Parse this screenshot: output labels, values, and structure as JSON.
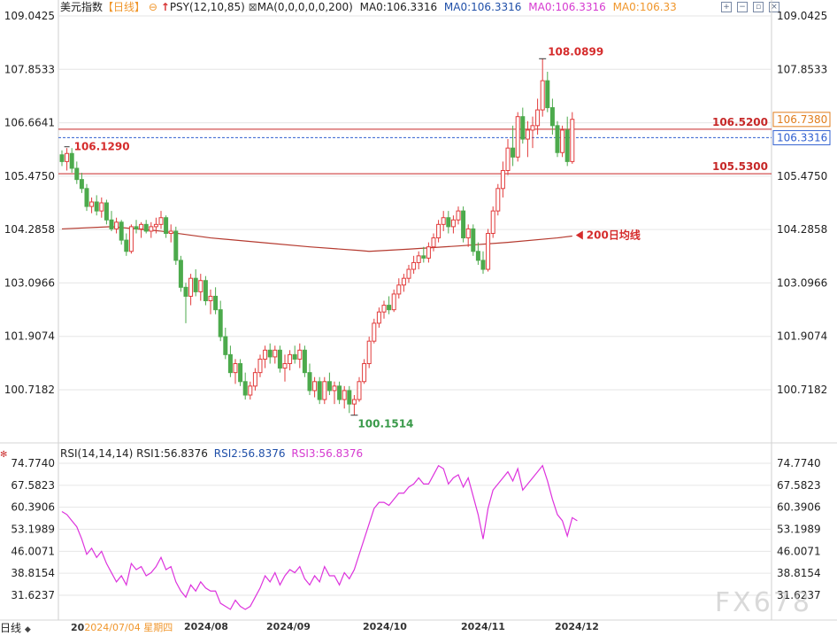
{
  "header": {
    "instrument": "美元指数",
    "period": "【日线】",
    "settle_icon": "⊖",
    "psy_label": "PSY(12,10,85)",
    "ma_params": "MA(0,0,0,0,0,200)",
    "ma_values": [
      "MA0:106.3316",
      "MA0:106.3316",
      "MA0:106.3316",
      "MA0:106.33"
    ],
    "ma_colors": [
      "#222222",
      "#1f4fa8",
      "#d63ad0",
      "#f0962b"
    ],
    "toolbar_icons": [
      "expand-icon",
      "minimize-icon",
      "restore-icon",
      "close-icon"
    ]
  },
  "rsi_header": {
    "params": "RSI(14,14,14)",
    "rsi1": "RSI1:56.8376",
    "rsi2": "RSI2:56.8376",
    "rsi3": "RSI3:56.8376"
  },
  "footer": {
    "period_tab": "日线",
    "hover_date": "2024/07/04 星期四",
    "hover_prefix": "20"
  },
  "watermark": "FX678",
  "colors": {
    "up": "#e23b3b",
    "down": "#4caa4c",
    "ma200": "#b53a2f",
    "level": "#c62828",
    "current": "#2f5fd0",
    "rsi": "#dd33dd",
    "annotation_red": "#d52c2c",
    "annotation_green": "#3a9a4a",
    "level_label_orange": "#e07d1c",
    "grid": "#e6e6e6"
  },
  "chart_data": [
    {
      "type": "candlestick",
      "ylim": [
        99.5,
        109.3
      ],
      "y_ticks": [
        "109.0425",
        "107.8533",
        "106.6641",
        "105.4750",
        "104.2858",
        "103.0966",
        "101.9074",
        "100.7182"
      ],
      "x_ticks": [
        "2024/08",
        "2024/09",
        "2024/10",
        "2024/11",
        "2024/12"
      ],
      "levels": [
        {
          "value": 106.52,
          "label": "106.5200"
        },
        {
          "value": 105.53,
          "label": "105.5300"
        }
      ],
      "current_price": {
        "value": 106.3316,
        "label": "106.3316"
      },
      "right_tag": {
        "value": 106.738,
        "label": "106.7380"
      },
      "annotations": {
        "high": {
          "value": 108.0899,
          "label": "108.0899"
        },
        "low": {
          "value": 100.1514,
          "label": "100.1514"
        },
        "start": {
          "value": 106.129,
          "label": "106.1290"
        },
        "ma200": {
          "label": "200日均线"
        }
      },
      "ohlc": [
        [
          105.95,
          106.05,
          105.7,
          105.8
        ],
        [
          105.8,
          106.1,
          105.6,
          105.98
        ],
        [
          105.98,
          106.1,
          105.55,
          105.65
        ],
        [
          105.65,
          105.8,
          105.3,
          105.4
        ],
        [
          105.4,
          105.55,
          105.1,
          105.2
        ],
        [
          105.2,
          105.3,
          104.7,
          104.8
        ],
        [
          104.8,
          105.0,
          104.65,
          104.9
        ],
        [
          104.9,
          105.05,
          104.6,
          104.7
        ],
        [
          104.7,
          105.0,
          104.55,
          104.88
        ],
        [
          104.88,
          104.95,
          104.4,
          104.5
        ],
        [
          104.5,
          104.7,
          104.25,
          104.3
        ],
        [
          104.3,
          104.55,
          104.2,
          104.45
        ],
        [
          104.45,
          104.5,
          103.95,
          104.05
        ],
        [
          104.05,
          104.2,
          103.7,
          103.8
        ],
        [
          103.8,
          104.4,
          103.75,
          104.35
        ],
        [
          104.35,
          104.5,
          104.2,
          104.3
        ],
        [
          104.3,
          104.45,
          104.1,
          104.4
        ],
        [
          104.4,
          104.5,
          104.2,
          104.25
        ],
        [
          104.25,
          104.45,
          104.1,
          104.35
        ],
        [
          104.35,
          104.55,
          104.2,
          104.4
        ],
        [
          104.4,
          104.7,
          104.3,
          104.55
        ],
        [
          104.55,
          104.6,
          104.1,
          104.2
        ],
        [
          104.2,
          104.4,
          104.0,
          104.25
        ],
        [
          104.25,
          104.35,
          103.5,
          103.6
        ],
        [
          103.6,
          103.7,
          102.9,
          103.0
        ],
        [
          103.0,
          103.1,
          102.2,
          102.8
        ],
        [
          102.8,
          103.3,
          102.6,
          103.2
        ],
        [
          103.2,
          103.4,
          102.8,
          102.9
        ],
        [
          102.9,
          103.3,
          102.7,
          103.15
        ],
        [
          103.15,
          103.25,
          102.6,
          102.7
        ],
        [
          102.7,
          102.95,
          102.4,
          102.8
        ],
        [
          102.8,
          103.0,
          102.4,
          102.5
        ],
        [
          102.5,
          102.7,
          101.8,
          101.9
        ],
        [
          101.9,
          102.1,
          101.4,
          101.5
        ],
        [
          101.5,
          101.7,
          101.0,
          101.1
        ],
        [
          101.1,
          101.4,
          100.85,
          101.3
        ],
        [
          101.3,
          101.4,
          100.8,
          100.9
        ],
        [
          100.9,
          101.1,
          100.5,
          100.6
        ],
        [
          100.6,
          100.9,
          100.5,
          100.8
        ],
        [
          100.8,
          101.2,
          100.7,
          101.1
        ],
        [
          101.1,
          101.5,
          101.0,
          101.4
        ],
        [
          101.4,
          101.7,
          101.2,
          101.6
        ],
        [
          101.6,
          101.75,
          101.3,
          101.45
        ],
        [
          101.45,
          101.7,
          101.3,
          101.6
        ],
        [
          101.6,
          101.7,
          101.1,
          101.2
        ],
        [
          101.2,
          101.5,
          100.9,
          101.3
        ],
        [
          101.3,
          101.6,
          101.15,
          101.5
        ],
        [
          101.5,
          101.7,
          101.3,
          101.4
        ],
        [
          101.4,
          101.75,
          101.2,
          101.6
        ],
        [
          101.6,
          101.7,
          101.0,
          101.1
        ],
        [
          101.1,
          101.3,
          100.6,
          100.7
        ],
        [
          100.7,
          101.0,
          100.55,
          100.9
        ],
        [
          100.9,
          101.0,
          100.4,
          100.5
        ],
        [
          100.5,
          101.0,
          100.4,
          100.9
        ],
        [
          100.9,
          101.1,
          100.6,
          100.7
        ],
        [
          100.7,
          100.9,
          100.4,
          100.8
        ],
        [
          100.8,
          100.9,
          100.4,
          100.5
        ],
        [
          100.5,
          100.8,
          100.3,
          100.7
        ],
        [
          100.7,
          100.8,
          100.2,
          100.4
        ],
        [
          100.4,
          100.6,
          100.15,
          100.5
        ],
        [
          100.5,
          101.0,
          100.45,
          100.9
        ],
        [
          100.9,
          101.4,
          100.85,
          101.3
        ],
        [
          101.3,
          101.9,
          101.2,
          101.8
        ],
        [
          101.8,
          102.3,
          101.75,
          102.2
        ],
        [
          102.2,
          102.55,
          102.1,
          102.45
        ],
        [
          102.45,
          102.7,
          102.3,
          102.6
        ],
        [
          102.6,
          102.8,
          102.4,
          102.5
        ],
        [
          102.5,
          102.95,
          102.45,
          102.85
        ],
        [
          102.85,
          103.2,
          102.75,
          103.05
        ],
        [
          103.05,
          103.3,
          102.9,
          103.2
        ],
        [
          103.2,
          103.5,
          103.1,
          103.4
        ],
        [
          103.4,
          103.7,
          103.3,
          103.55
        ],
        [
          103.55,
          103.8,
          103.4,
          103.7
        ],
        [
          103.7,
          103.9,
          103.55,
          103.65
        ],
        [
          103.65,
          104.0,
          103.55,
          103.9
        ],
        [
          103.9,
          104.2,
          103.8,
          104.1
        ],
        [
          104.1,
          104.5,
          104.0,
          104.4
        ],
        [
          104.4,
          104.7,
          104.25,
          104.55
        ],
        [
          104.55,
          104.7,
          104.2,
          104.35
        ],
        [
          104.35,
          104.6,
          104.2,
          104.5
        ],
        [
          104.5,
          104.8,
          104.4,
          104.7
        ],
        [
          104.7,
          104.8,
          104.0,
          104.1
        ],
        [
          104.1,
          104.4,
          103.9,
          104.3
        ],
        [
          104.3,
          104.4,
          103.7,
          103.8
        ],
        [
          103.8,
          104.0,
          103.5,
          103.6
        ],
        [
          103.6,
          103.8,
          103.3,
          103.4
        ],
        [
          103.4,
          104.3,
          103.35,
          104.2
        ],
        [
          104.2,
          104.8,
          104.1,
          104.7
        ],
        [
          104.7,
          105.3,
          104.6,
          105.2
        ],
        [
          105.2,
          105.8,
          105.0,
          105.6
        ],
        [
          105.6,
          106.3,
          105.5,
          106.1
        ],
        [
          106.1,
          106.6,
          105.7,
          105.9
        ],
        [
          105.9,
          106.9,
          105.8,
          106.8
        ],
        [
          106.8,
          107.0,
          106.2,
          106.3
        ],
        [
          106.3,
          106.7,
          105.9,
          106.5
        ],
        [
          106.5,
          106.8,
          106.1,
          106.6
        ],
        [
          106.6,
          107.2,
          106.4,
          106.95
        ],
        [
          106.95,
          108.09,
          106.8,
          107.6
        ],
        [
          107.6,
          107.8,
          106.9,
          107.0
        ],
        [
          107.0,
          107.2,
          106.4,
          106.6
        ],
        [
          106.6,
          106.7,
          105.9,
          106.0
        ],
        [
          106.0,
          106.6,
          105.9,
          106.5
        ],
        [
          106.5,
          106.8,
          105.7,
          105.8
        ],
        [
          105.8,
          106.9,
          105.75,
          106.74
        ]
      ],
      "ma200": [
        [
          0,
          104.3
        ],
        [
          10,
          104.35
        ],
        [
          20,
          104.25
        ],
        [
          30,
          104.1
        ],
        [
          40,
          104.0
        ],
        [
          50,
          103.9
        ],
        [
          60,
          103.82
        ],
        [
          62,
          103.8
        ],
        [
          70,
          103.85
        ],
        [
          80,
          103.92
        ],
        [
          90,
          104.0
        ],
        [
          100,
          104.1
        ],
        [
          103,
          104.14
        ]
      ]
    },
    {
      "type": "line",
      "title": "RSI(14,14,14)",
      "ylim": [
        28.5,
        76.5
      ],
      "y_ticks": [
        "74.7740",
        "67.5823",
        "60.3906",
        "53.1989",
        "46.0071",
        "38.8154",
        "31.6237"
      ],
      "series": [
        {
          "name": "RSI1",
          "values": [
            59,
            58,
            56,
            54,
            50,
            45,
            47,
            44,
            46,
            42,
            39,
            36,
            38,
            35,
            42,
            40,
            41,
            38,
            39,
            41,
            44,
            40,
            41,
            36,
            33,
            31,
            35,
            33,
            36,
            34,
            33,
            33,
            29,
            28,
            27,
            30,
            28,
            27,
            28,
            31,
            34,
            38,
            36,
            39,
            35,
            38,
            40,
            39,
            41,
            37,
            35,
            38,
            36,
            41,
            38,
            38,
            35,
            39,
            37,
            40,
            45,
            50,
            55,
            60,
            62,
            62,
            61,
            63,
            65,
            65,
            67,
            68,
            70,
            68,
            68,
            71,
            74,
            73,
            68,
            70,
            71,
            67,
            70,
            64,
            58,
            50,
            60,
            66,
            68,
            70,
            72,
            69,
            73,
            66,
            68,
            70,
            72,
            74,
            69,
            63,
            58,
            56,
            51,
            57,
            56
          ]
        }
      ]
    }
  ]
}
